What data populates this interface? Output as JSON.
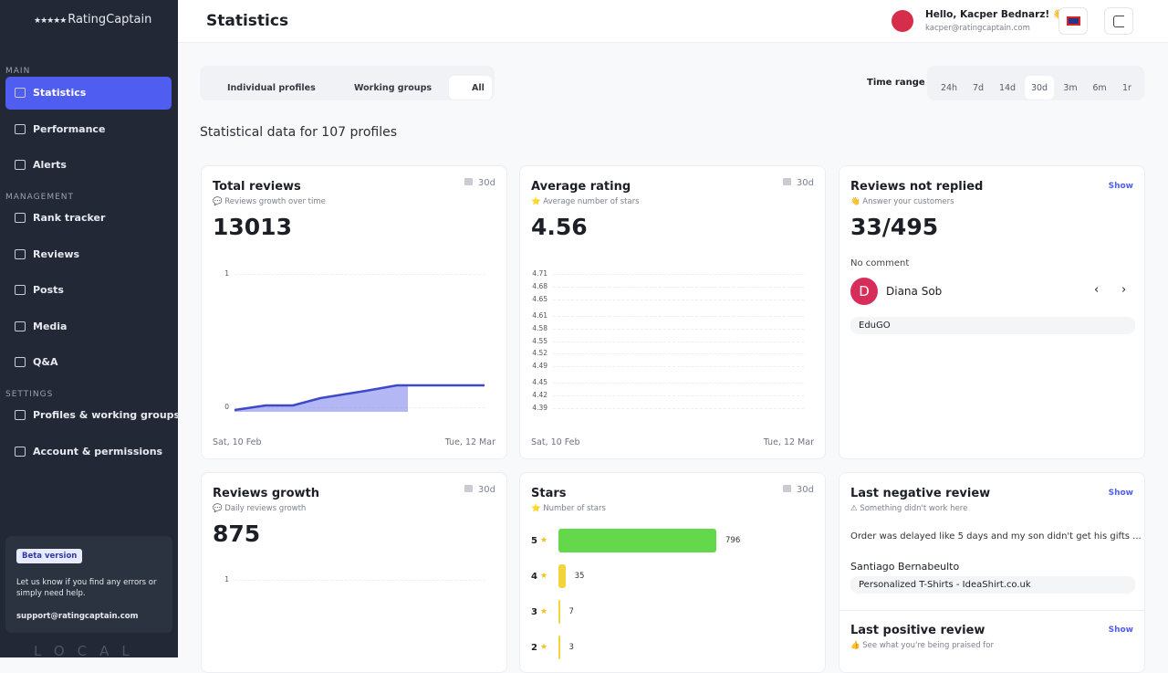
{
  "sidebar": {
    "brand": "RatingCaptain",
    "sections": [
      {
        "title": "MAIN",
        "items": [
          "Statistics",
          "Performance",
          "Alerts"
        ]
      },
      {
        "title": "MANAGEMENT",
        "items": [
          "Rank tracker",
          "Reviews",
          "Posts",
          "Media",
          "Q&A"
        ]
      },
      {
        "title": "SETTINGS",
        "items": [
          "Profiles & working groups",
          "Account & permissions"
        ]
      }
    ],
    "beta": {
      "badge": "Beta version",
      "text": "Let us know if you find any errors or simply need help.",
      "email": "support@ratingcaptain.com"
    },
    "footer": "LOCAL"
  },
  "header": {
    "title": "Statistics",
    "greeting": "Hello, Kacper Bednarz! 👋",
    "email": "kacper@ratingcaptain.com"
  },
  "filters": {
    "tabs": [
      "Individual profiles",
      "Working groups",
      "All"
    ],
    "time_range_label": "Time range",
    "ranges": [
      "24h",
      "7d",
      "14d",
      "30d",
      "3m",
      "6m",
      "1r"
    ]
  },
  "summary": "Statistical data for 107 profiles",
  "cards": {
    "total_reviews": {
      "title": "Total reviews",
      "subtitle": "💬 Reviews growth over time",
      "badge": "30d",
      "value": 13013,
      "yticks": [
        1,
        0
      ],
      "dates": [
        "Sat, 10 Feb",
        "Tue, 12 Mar"
      ]
    },
    "average_rating": {
      "title": "Average rating",
      "subtitle": "⭐ Average number of stars",
      "badge": "30d",
      "value": 4.56,
      "yticks": [
        4.71,
        4.68,
        4.65,
        4.61,
        4.58,
        4.55,
        4.52,
        4.49,
        4.45,
        4.42,
        4.39
      ],
      "dates": [
        "Sat, 10 Feb",
        "Tue, 12 Mar"
      ]
    },
    "not_replied": {
      "title": "Reviews not replied",
      "subtitle": "👋 Answer your customers",
      "action": "Show",
      "value": "33/495",
      "status": "No comment",
      "initial": "D",
      "name": "Diana Sob",
      "profile": "EduGO"
    },
    "reviews_growth": {
      "title": "Reviews growth",
      "subtitle": "💬 Daily reviews growth",
      "badge": "30d",
      "value": 875,
      "yticks": [
        1
      ]
    },
    "stars": {
      "title": "Stars",
      "subtitle": "⭐ Number of stars",
      "badge": "30d",
      "color": "#62d84a",
      "rows": [
        {
          "label": 5,
          "value": 796
        },
        {
          "label": 4,
          "value": 35
        },
        {
          "label": 3,
          "value": 7
        },
        {
          "label": 2,
          "value": 3
        }
      ]
    },
    "last_negative": {
      "title": "Last negative review",
      "subtitle": "⚠ Something didn't work here",
      "action": "Show",
      "text": "Order was delayed like 5 days and my son didn't get his gifts ...",
      "name": "Santiago Bernabeulto",
      "profile": "Personalized T-Shirts - IdeaShirt.co.uk"
    },
    "last_positive": {
      "title": "Last positive review",
      "subtitle": "👍 See what you're being praised for",
      "action": "Show"
    }
  }
}
